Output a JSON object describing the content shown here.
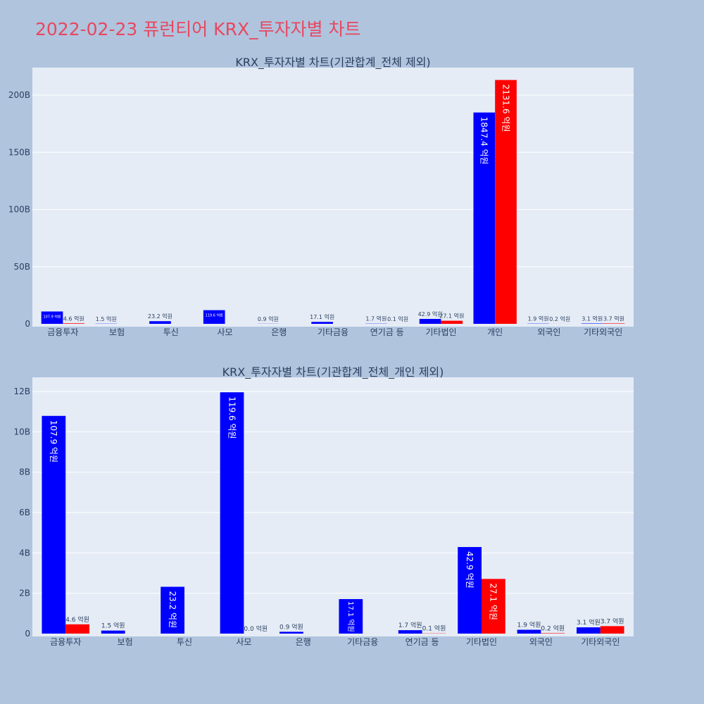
{
  "page_title": "2022-02-23 퓨런티어 KRX_투자자별 차트",
  "colors": {
    "background": "#b0c4de",
    "plot_bg": "#e5ecf6",
    "title": "#e8475f",
    "series_blue": "#0000ff",
    "series_red": "#ff0000"
  },
  "chart_data": [
    {
      "type": "bar",
      "title": "KRX_투자자별 차트(기관합계_전체 제외)",
      "xlabel": "",
      "ylabel": "",
      "categories": [
        "금융투자",
        "보험",
        "투신",
        "사모",
        "은행",
        "기타금융",
        "연기금 등",
        "기타법인",
        "개인",
        "외국인",
        "기타외국인"
      ],
      "ylim": [
        0,
        224000000000
      ],
      "yticks": [
        0,
        50000000000,
        100000000000,
        150000000000,
        200000000000
      ],
      "ytick_labels": [
        "0",
        "50B",
        "100B",
        "150B",
        "200B"
      ],
      "grid": true,
      "series": [
        {
          "color": "#0000ff",
          "values": [
            10790000000,
            150000000,
            2320000000,
            11960000000,
            90000000,
            1710000000,
            170000000,
            4290000000,
            184740000000,
            190000000,
            310000000
          ],
          "labels": [
            "107.9 억원",
            "1.5 억원",
            "23.2 억원",
            "119.6 억원",
            "0.9 억원",
            "17.1 억원",
            "1.7 억원",
            "42.9 억원",
            "1847.4 억원",
            "1.9 억원",
            "3.1 억원"
          ]
        },
        {
          "color": "#ff0000",
          "values": [
            460000000,
            null,
            null,
            0,
            null,
            null,
            10000000,
            2710000000,
            213160000000,
            20000000,
            370000000
          ],
          "labels": [
            "4.6 억원",
            null,
            null,
            null,
            null,
            null,
            "0.1 억원",
            "27.1 억원",
            "2131.6 억원",
            "0.2 억원",
            "3.7 억원"
          ]
        }
      ]
    },
    {
      "type": "bar",
      "title": "KRX_투자자별 차트(기관합계_전체_개인 제외)",
      "xlabel": "",
      "ylabel": "",
      "categories": [
        "금융투자",
        "보험",
        "투신",
        "사모",
        "은행",
        "기타금융",
        "연기금 등",
        "기타법인",
        "외국인",
        "기타외국인"
      ],
      "ylim": [
        0,
        12700000000
      ],
      "yticks": [
        0,
        2000000000,
        4000000000,
        6000000000,
        8000000000,
        10000000000,
        12000000000
      ],
      "ytick_labels": [
        "0",
        "2B",
        "4B",
        "6B",
        "8B",
        "10B",
        "12B"
      ],
      "grid": true,
      "series": [
        {
          "color": "#0000ff",
          "values": [
            10790000000,
            150000000,
            2320000000,
            11960000000,
            90000000,
            1710000000,
            170000000,
            4290000000,
            190000000,
            310000000
          ],
          "labels": [
            "107.9 억원",
            "1.5 억원",
            "23.2 억원",
            "119.6 억원",
            "0.9 억원",
            "17.1 억원",
            "1.7 억원",
            "42.9 억원",
            "1.9 억원",
            "3.1 억원"
          ]
        },
        {
          "color": "#ff0000",
          "values": [
            460000000,
            null,
            null,
            0,
            null,
            null,
            10000000,
            2710000000,
            20000000,
            370000000
          ],
          "labels": [
            "4.6 억원",
            null,
            null,
            "0.0 억원",
            null,
            null,
            "0.1 억원",
            "27.1 억원",
            "0.2 억원",
            "3.7 억원"
          ]
        }
      ]
    }
  ]
}
